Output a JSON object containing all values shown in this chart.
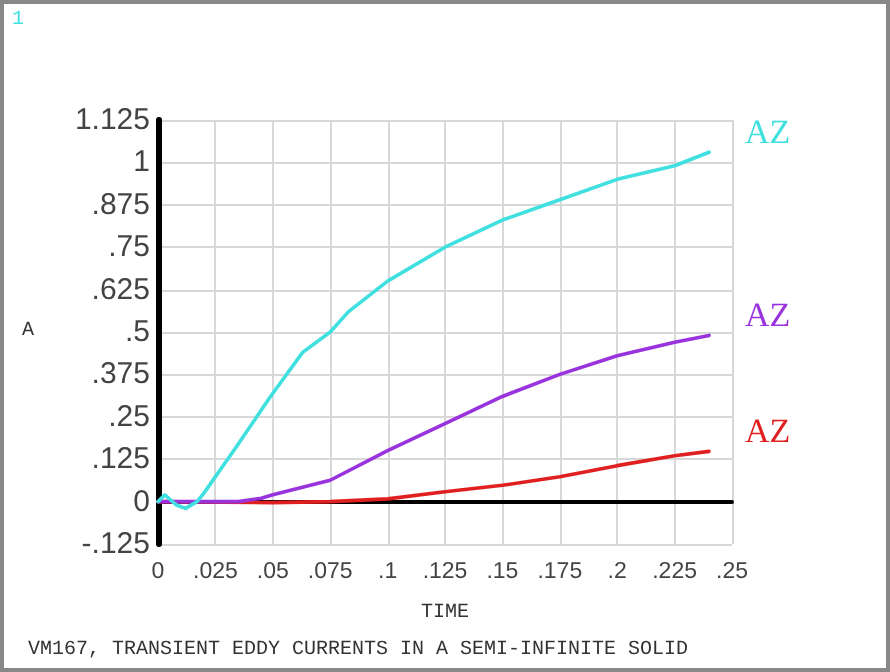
{
  "chart_data": {
    "type": "line",
    "xlabel": "TIME",
    "ylabel": "A",
    "annotations": [
      "1",
      "VM167, TRANSIENT EDDY CURRENTS IN A SEMI-INFINITE SOLID"
    ],
    "series": [
      {
        "name": "AZ",
        "color": "#40e0e0",
        "x": [
          0,
          0.003,
          0.008,
          0.012,
          0.017,
          0.02,
          0.034,
          0.049,
          0.063,
          0.075,
          0.083,
          0.1,
          0.125,
          0.15,
          0.175,
          0.2,
          0.225,
          0.24
        ],
        "values": [
          0,
          0.02,
          -0.01,
          -0.02,
          0,
          0.025,
          0.16,
          0.31,
          0.44,
          0.5,
          0.56,
          0.65,
          0.75,
          0.83,
          0.89,
          0.95,
          0.99,
          1.03
        ]
      },
      {
        "name": "AZ",
        "color": "#9933dd",
        "x": [
          0,
          0.035,
          0.045,
          0.05,
          0.075,
          0.1,
          0.125,
          0.15,
          0.175,
          0.2,
          0.225,
          0.24
        ],
        "values": [
          0,
          0,
          0.01,
          0.02,
          0.063,
          0.15,
          0.23,
          0.31,
          0.375,
          0.43,
          0.47,
          0.49
        ]
      },
      {
        "name": "AZ",
        "color": "#e02020",
        "x": [
          0,
          0.05,
          0.075,
          0.1,
          0.125,
          0.15,
          0.175,
          0.2,
          0.225,
          0.24
        ],
        "values": [
          0,
          -0.003,
          0,
          0.008,
          0.029,
          0.048,
          0.073,
          0.106,
          0.135,
          0.148
        ]
      }
    ],
    "xlim": [
      0,
      0.25
    ],
    "xticks": [
      0,
      {
        "value": 0.025,
        "label": ".025"
      },
      {
        "value": 0.05,
        "label": ".05"
      },
      {
        "value": 0.075,
        "label": ".075"
      },
      {
        "value": 0.1,
        "label": ".1"
      },
      {
        "value": 0.125,
        "label": ".125"
      },
      {
        "value": 0.15,
        "label": ".15"
      },
      {
        "value": 0.175,
        "label": ".175"
      },
      {
        "value": 0.2,
        "label": ".2"
      },
      {
        "value": 0.225,
        "label": ".225"
      },
      {
        "value": 0.25,
        "label": ".25"
      }
    ],
    "ylim": [
      -0.125,
      1.125
    ],
    "yticks": [
      {
        "value": -0.125,
        "label": "-.125"
      },
      0,
      {
        "value": 0.125,
        "label": ".125"
      },
      {
        "value": 0.25,
        "label": ".25"
      },
      {
        "value": 0.375,
        "label": ".375"
      },
      {
        "value": 0.5,
        "label": ".5"
      },
      {
        "value": 0.625,
        "label": ".625"
      },
      {
        "value": 0.75,
        "label": ".75"
      },
      {
        "value": 0.875,
        "label": ".875"
      },
      1,
      {
        "value": 1.125,
        "label": "1.125"
      }
    ],
    "grid": true,
    "legend": false,
    "marker": "none",
    "line_style": "solid"
  }
}
